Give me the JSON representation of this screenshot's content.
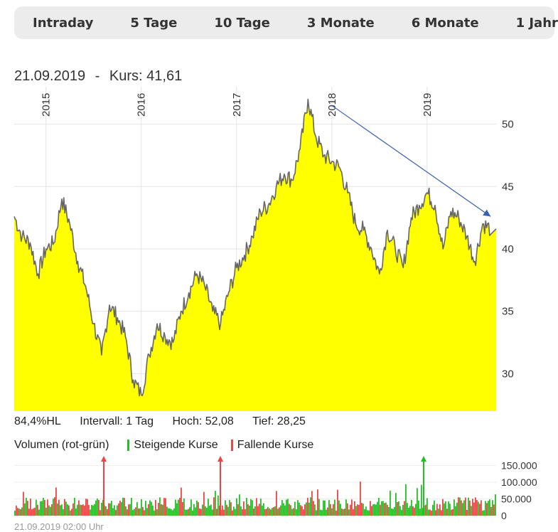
{
  "tabs": [
    "Intraday",
    "5 Tage",
    "10 Tage",
    "3 Monate",
    "6 Monate",
    "1 Jahr"
  ],
  "header": {
    "date": "21.09.2019",
    "sep": "-",
    "kurs": "Kurs: 41,61"
  },
  "stats": {
    "hl": "84,4%HL",
    "interval": "Intervall: 1 Tag",
    "hoch": "Hoch:  52,08",
    "tief": "Tief:  28,25"
  },
  "volume_legend": {
    "title": "Volumen (rot-grün)",
    "rising": "Steigende Kurse",
    "falling": "Fallende Kurse"
  },
  "footer": "21.09.2019 02:00 Uhr",
  "colors": {
    "area": "#ffff00",
    "line": "#666666",
    "trend": "#3a5fb0",
    "up": "#22c022",
    "down": "#ee4444"
  },
  "chart_data": [
    {
      "type": "area",
      "title": "",
      "x_tick_labels": [
        "2015",
        "2016",
        "2017",
        "2018",
        "2019"
      ],
      "y_ticks": [
        30,
        35,
        40,
        45,
        50
      ],
      "ylim": [
        27,
        53
      ],
      "grid": true,
      "series": [
        {
          "x": [
            "2014-09",
            "2014-10",
            "2014-11",
            "2014-12",
            "2015-01",
            "2015-02",
            "2015-03",
            "2015-04",
            "2015-05",
            "2015-06",
            "2015-07",
            "2015-08",
            "2015-09",
            "2015-10",
            "2015-11",
            "2015-12",
            "2016-01",
            "2016-02",
            "2016-03",
            "2016-04",
            "2016-05",
            "2016-06",
            "2016-07",
            "2016-08",
            "2016-09",
            "2016-10",
            "2016-11",
            "2016-12",
            "2017-01",
            "2017-02",
            "2017-03",
            "2017-04",
            "2017-05",
            "2017-06",
            "2017-07",
            "2017-08",
            "2017-09",
            "2017-10",
            "2017-11",
            "2017-12",
            "2018-01",
            "2018-02",
            "2018-03",
            "2018-04",
            "2018-05",
            "2018-06",
            "2018-07",
            "2018-08",
            "2018-09",
            "2018-10",
            "2018-11",
            "2018-12",
            "2019-01",
            "2019-02",
            "2019-03",
            "2019-04",
            "2019-05",
            "2019-06",
            "2019-07",
            "2019-08",
            "2019-09"
          ],
          "values": [
            42.6,
            41.0,
            40.5,
            38.0,
            40.0,
            40.5,
            44.0,
            42.0,
            39.0,
            37.0,
            34.0,
            31.5,
            35.5,
            34.5,
            33.0,
            29.5,
            28.3,
            31.5,
            34.0,
            33.0,
            32.5,
            35.0,
            36.5,
            38.0,
            37.0,
            35.0,
            34.0,
            36.5,
            38.5,
            39.5,
            41.0,
            43.0,
            43.5,
            45.0,
            46.0,
            45.5,
            48.0,
            52.0,
            49.0,
            47.5,
            47.0,
            46.5,
            44.5,
            42.0,
            41.5,
            40.0,
            38.0,
            41.5,
            40.0,
            38.5,
            42.5,
            43.5,
            44.5,
            43.5,
            40.0,
            43.0,
            42.5,
            41.0,
            39.0,
            42.0,
            41.61
          ]
        }
      ],
      "annotations": {
        "trendline": {
          "from": [
            "2018-01",
            51.5
          ],
          "to": [
            "2019-09",
            42.6
          ]
        }
      }
    },
    {
      "type": "bar",
      "title": "Volumen (rot-grün)",
      "y_tick_labels": [
        "150.000",
        "100.000",
        "50.000",
        "0"
      ],
      "y_ticks": [
        150000,
        100000,
        50000,
        0
      ],
      "ylim": [
        0,
        170000
      ],
      "series": [
        {
          "name": "Steigende Kurse",
          "color": "#22c022"
        },
        {
          "name": "Fallende Kurse",
          "color": "#ee4444"
        }
      ]
    }
  ]
}
